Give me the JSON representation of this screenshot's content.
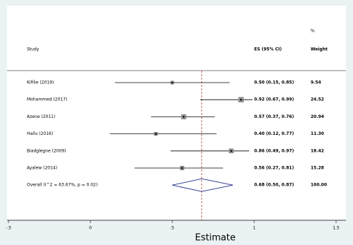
{
  "chart_data": {
    "type": "forest",
    "x_label": "Estimate",
    "header": {
      "percent": "%",
      "study": "Study",
      "es": "ES (95% CI)",
      "weight": "Weight"
    },
    "studies": {
      "names": [
        "Kifilie  (2019)",
        "Mohammed (2017)",
        "Azene (2011)",
        "Hailu (2016)",
        "Biadglegne (2009)",
        "Ayalew (2014)"
      ],
      "es": [
        0.5,
        0.92,
        0.57,
        0.4,
        0.86,
        0.56
      ],
      "lower": [
        0.15,
        0.67,
        0.37,
        0.12,
        0.49,
        0.27
      ],
      "upper": [
        0.85,
        0.99,
        0.76,
        0.77,
        0.97,
        0.81
      ],
      "value_labels": [
        "0.50 (0.15, 0.85)",
        "0.92 (0.67, 0.99)",
        "0.57 (0.37, 0.76)",
        "0.40 (0.12, 0.77)",
        "0.86 (0.49, 0.97)",
        "0.56 (0.27, 0.81)"
      ],
      "weights": [
        9.54,
        24.52,
        20.94,
        11.3,
        18.42,
        15.28
      ],
      "weight_labels": [
        "9.54",
        "24.52",
        "20.94",
        "11.30",
        "18.42",
        "15.28"
      ]
    },
    "overall": {
      "label": "Overall  (I^2 = 63.67%, p = 0.02)",
      "es": 0.68,
      "lower": 0.5,
      "upper": 0.87,
      "value_label": "0.68 (0.50, 0.87)",
      "weight": 100,
      "weight_label": "100.00"
    },
    "xlim": [
      -0.5,
      1.5
    ],
    "xticks": [
      {
        "value": -0.5,
        "label": "-.5"
      },
      0,
      {
        "value": 0.5,
        "label": ".5"
      },
      1,
      1.5
    ],
    "ref_line_color": "#c0392b",
    "diamond_color": "#1f2d8a",
    "color": "#000000"
  }
}
